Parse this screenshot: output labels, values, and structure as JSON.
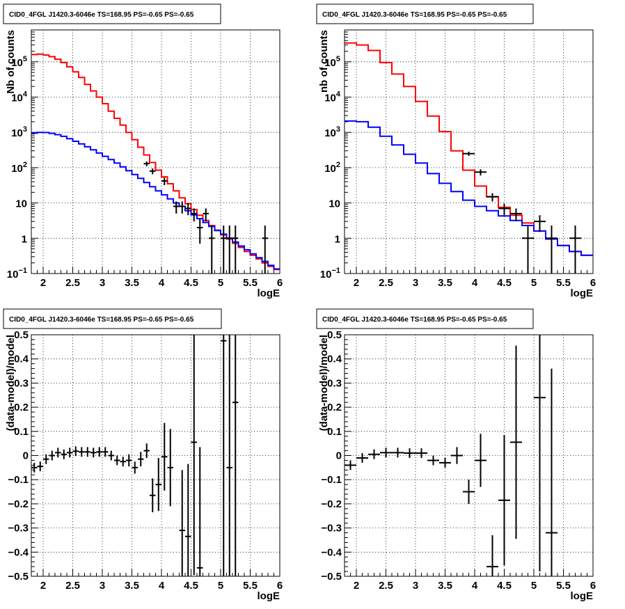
{
  "chart_data": [
    {
      "type": "histogram",
      "title": "CID0_4FGL J1420.3-6046e TS=168.95 PS=-0.65 PS=-0.65",
      "xlabel": "logE",
      "ylabel": "Nb of counts",
      "xlim": [
        1.8,
        6.0
      ],
      "ylim": [
        0.1,
        800000
      ],
      "yscale": "log",
      "grid": true,
      "xticks": [
        {
          "v": 2,
          "label": "2"
        },
        {
          "v": 2.5,
          "label": "2.5"
        },
        {
          "v": 3,
          "label": "3"
        },
        {
          "v": 3.5,
          "label": "3.5"
        },
        {
          "v": 4,
          "label": "4"
        },
        {
          "v": 4.5,
          "label": "4.5"
        },
        {
          "v": 5,
          "label": "5"
        },
        {
          "v": 5.5,
          "label": "5.5"
        },
        {
          "v": 6,
          "label": "6"
        }
      ],
      "yticks": [
        {
          "v": 0.1,
          "base": "10",
          "exp": "−1"
        },
        {
          "v": 1,
          "base": "1",
          "exp": ""
        },
        {
          "v": 10,
          "base": "10",
          "exp": ""
        },
        {
          "v": 100,
          "base": "10",
          "exp": "2"
        },
        {
          "v": 1000,
          "base": "10",
          "exp": "3"
        },
        {
          "v": 10000,
          "base": "10",
          "exp": "4"
        },
        {
          "v": 100000,
          "base": "10",
          "exp": "5"
        }
      ],
      "bin_edges": [
        1.8,
        1.9,
        2.0,
        2.1,
        2.2,
        2.3,
        2.4,
        2.5,
        2.6,
        2.7,
        2.8,
        2.9,
        3.0,
        3.1,
        3.2,
        3.3,
        3.4,
        3.5,
        3.6,
        3.7,
        3.8,
        3.9,
        4.0,
        4.1,
        4.2,
        4.3,
        4.4,
        4.5,
        4.6,
        4.7,
        4.8,
        4.9,
        5.0,
        5.1,
        5.2,
        5.3,
        5.4,
        5.5,
        5.6,
        5.7,
        5.8,
        5.9,
        6.0
      ],
      "series": [
        {
          "color": "#ff0000",
          "values": [
            160000,
            165000,
            155000,
            140000,
            118000,
            95000,
            72000,
            52000,
            36000,
            23000,
            15000,
            10000,
            6500,
            4000,
            2500,
            1600,
            1000,
            620,
            380,
            230,
            140,
            85,
            55,
            35,
            22,
            14,
            9.5,
            6.5,
            4.5,
            3.2,
            2.3,
            1.7,
            1.25,
            0.95,
            0.72,
            0.55,
            0.42,
            0.33,
            0.26,
            0.2,
            0.16,
            0.13
          ]
        },
        {
          "color": "#0000ff",
          "values": [
            950,
            1000,
            990,
            940,
            860,
            770,
            660,
            560,
            470,
            390,
            320,
            260,
            210,
            170,
            135,
            105,
            82,
            64,
            50,
            38,
            29,
            22,
            17,
            13,
            10,
            8,
            6,
            4.6,
            3.6,
            2.8,
            2.15,
            1.65,
            1.3,
            1.0,
            0.78,
            0.6,
            0.47,
            0.36,
            0.28,
            0.22,
            0.17,
            0.135
          ]
        }
      ],
      "points": [
        {
          "x": 3.75,
          "y": 130,
          "ylo": 110,
          "yhi": 150
        },
        {
          "x": 3.85,
          "y": 80,
          "ylo": 65,
          "yhi": 95
        },
        {
          "x": 4.05,
          "y": 42,
          "ylo": 32,
          "yhi": 52
        },
        {
          "x": 4.25,
          "y": 8,
          "ylo": 5,
          "yhi": 11
        },
        {
          "x": 4.35,
          "y": 8,
          "ylo": 5,
          "yhi": 11
        },
        {
          "x": 4.45,
          "y": 7,
          "ylo": 4.5,
          "yhi": 10
        },
        {
          "x": 4.55,
          "y": 5,
          "ylo": 3,
          "yhi": 7
        },
        {
          "x": 4.65,
          "y": 2,
          "ylo": 0.7,
          "yhi": 3.5
        },
        {
          "x": 4.75,
          "y": 5,
          "ylo": 3,
          "yhi": 7
        },
        {
          "x": 4.85,
          "y": 1,
          "ylo": 0.1,
          "yhi": 2.3
        },
        {
          "x": 5.05,
          "y": 1,
          "ylo": 0.1,
          "yhi": 2.3
        },
        {
          "x": 5.15,
          "y": 1,
          "ylo": 0.1,
          "yhi": 2.3
        },
        {
          "x": 5.25,
          "y": 1,
          "ylo": 0.1,
          "yhi": 2.3
        },
        {
          "x": 5.75,
          "y": 1,
          "ylo": 0.1,
          "yhi": 2.3
        }
      ]
    },
    {
      "type": "histogram",
      "title": "CID0_4FGL J1420.3-6046e TS=168.95 PS=-0.65 PS=-0.65",
      "xlabel": "logE",
      "ylabel": "nb of counts",
      "xlim": [
        1.8,
        6.0
      ],
      "ylim": [
        0.1,
        800000
      ],
      "yscale": "log",
      "grid": true,
      "xticks": [
        {
          "v": 2,
          "label": "2"
        },
        {
          "v": 2.5,
          "label": "2.5"
        },
        {
          "v": 3,
          "label": "3"
        },
        {
          "v": 3.5,
          "label": "3.5"
        },
        {
          "v": 4,
          "label": "4"
        },
        {
          "v": 4.5,
          "label": "4.5"
        },
        {
          "v": 5,
          "label": "5"
        },
        {
          "v": 5.5,
          "label": "5.5"
        },
        {
          "v": 6,
          "label": "6"
        }
      ],
      "yticks": [
        {
          "v": 0.1,
          "base": "10",
          "exp": "−1"
        },
        {
          "v": 1,
          "base": "1",
          "exp": ""
        },
        {
          "v": 10,
          "base": "10",
          "exp": ""
        },
        {
          "v": 100,
          "base": "10",
          "exp": "2"
        },
        {
          "v": 1000,
          "base": "10",
          "exp": "3"
        },
        {
          "v": 10000,
          "base": "10",
          "exp": "4"
        },
        {
          "v": 100000,
          "base": "10",
          "exp": "5"
        }
      ],
      "bin_edges": [
        1.8,
        2.0,
        2.2,
        2.4,
        2.6,
        2.8,
        3.0,
        3.2,
        3.4,
        3.6,
        3.8,
        4.0,
        4.2,
        4.4,
        4.6,
        4.8,
        5.0,
        5.2,
        5.4,
        5.6,
        5.8,
        6.0
      ],
      "series": [
        {
          "color": "#ff0000",
          "values": [
            340000,
            300000,
            210000,
            95000,
            45000,
            20000,
            7500,
            2900,
            1050,
            300,
            85,
            30,
            15,
            7.5,
            4.5,
            2.7,
            1.6,
            0.95,
            0.62,
            0.42,
            0.33
          ]
        },
        {
          "color": "#0000ff",
          "values": [
            2100,
            2000,
            1400,
            780,
            440,
            240,
            135,
            68,
            36,
            21,
            12,
            8,
            6,
            4.3,
            3.2,
            2.3,
            1.6,
            0.95,
            0.62,
            0.42,
            0.33
          ]
        }
      ],
      "points": [
        {
          "x": 3.9,
          "y": 250,
          "ylo": 215,
          "yhi": 285
        },
        {
          "x": 4.1,
          "y": 75,
          "ylo": 60,
          "yhi": 90
        },
        {
          "x": 4.3,
          "y": 15,
          "ylo": 11,
          "yhi": 19
        },
        {
          "x": 4.5,
          "y": 7,
          "ylo": 4.5,
          "yhi": 9.5
        },
        {
          "x": 4.7,
          "y": 5,
          "ylo": 3,
          "yhi": 7
        },
        {
          "x": 4.9,
          "y": 1,
          "ylo": 0.1,
          "yhi": 2.3
        },
        {
          "x": 5.1,
          "y": 3,
          "ylo": 1.5,
          "yhi": 4.5
        },
        {
          "x": 5.3,
          "y": 1,
          "ylo": 0.1,
          "yhi": 2.3
        },
        {
          "x": 5.7,
          "y": 1,
          "ylo": 0.1,
          "yhi": 2.3
        }
      ]
    },
    {
      "type": "scatter",
      "title": "CID0_4FGL J1420.3-6046e TS=168.95 PS=-0.65 PS=-0.65",
      "xlabel": "logE",
      "ylabel": "(data-model)/model",
      "xlim": [
        1.8,
        6.0
      ],
      "ylim": [
        -0.5,
        0.5
      ],
      "yscale": "linear",
      "grid": true,
      "xticks": [
        {
          "v": 2,
          "label": "2"
        },
        {
          "v": 2.5,
          "label": "2.5"
        },
        {
          "v": 3,
          "label": "3"
        },
        {
          "v": 3.5,
          "label": "3.5"
        },
        {
          "v": 4,
          "label": "4"
        },
        {
          "v": 4.5,
          "label": "4.5"
        },
        {
          "v": 5,
          "label": "5"
        },
        {
          "v": 5.5,
          "label": "5.5"
        },
        {
          "v": 6,
          "label": "6"
        }
      ],
      "yticks": [
        {
          "v": -0.5,
          "label": "−0.5"
        },
        {
          "v": -0.4,
          "label": "−0.4"
        },
        {
          "v": -0.3,
          "label": "−0.3"
        },
        {
          "v": -0.2,
          "label": "−0.2"
        },
        {
          "v": -0.1,
          "label": "−0.1"
        },
        {
          "v": 0,
          "label": "0"
        },
        {
          "v": 0.1,
          "label": "0.1"
        },
        {
          "v": 0.2,
          "label": "0.2"
        },
        {
          "v": 0.3,
          "label": "0.3"
        },
        {
          "v": 0.4,
          "label": "0.4"
        },
        {
          "v": 0.5,
          "label": "0.5"
        }
      ],
      "xerr": 0.05,
      "points": [
        {
          "x": 1.85,
          "y": -0.05,
          "e": 0.02
        },
        {
          "x": 1.95,
          "y": -0.045,
          "e": 0.02
        },
        {
          "x": 2.05,
          "y": -0.015,
          "e": 0.02
        },
        {
          "x": 2.15,
          "y": 0.0,
          "e": 0.02
        },
        {
          "x": 2.25,
          "y": 0.012,
          "e": 0.02
        },
        {
          "x": 2.35,
          "y": 0.005,
          "e": 0.02
        },
        {
          "x": 2.45,
          "y": 0.012,
          "e": 0.02
        },
        {
          "x": 2.55,
          "y": 0.018,
          "e": 0.02
        },
        {
          "x": 2.65,
          "y": 0.015,
          "e": 0.02
        },
        {
          "x": 2.75,
          "y": 0.015,
          "e": 0.02
        },
        {
          "x": 2.85,
          "y": 0.012,
          "e": 0.02
        },
        {
          "x": 2.95,
          "y": 0.015,
          "e": 0.02
        },
        {
          "x": 3.05,
          "y": 0.015,
          "e": 0.02
        },
        {
          "x": 3.15,
          "y": 0.0,
          "e": 0.02
        },
        {
          "x": 3.25,
          "y": -0.02,
          "e": 0.02
        },
        {
          "x": 3.35,
          "y": -0.025,
          "e": 0.02
        },
        {
          "x": 3.45,
          "y": -0.02,
          "e": 0.025
        },
        {
          "x": 3.55,
          "y": -0.05,
          "e": 0.025
        },
        {
          "x": 3.65,
          "y": -0.015,
          "e": 0.03
        },
        {
          "x": 3.75,
          "y": 0.02,
          "e": 0.03
        },
        {
          "x": 3.85,
          "y": -0.165,
          "e": 0.07
        },
        {
          "x": 3.95,
          "y": -0.12,
          "e": 0.11
        },
        {
          "x": 4.05,
          "y": -0.005,
          "e": 0.14
        },
        {
          "x": 4.15,
          "y": -0.05,
          "e": 0.16
        },
        {
          "x": 4.35,
          "y": -0.31,
          "e": 0.25
        },
        {
          "x": 4.45,
          "y": -0.335,
          "e": 0.3
        },
        {
          "x": 4.55,
          "y": 0.055,
          "e": 0.55
        },
        {
          "x": 4.65,
          "y": -0.465,
          "e": 0.5
        },
        {
          "x": 5.05,
          "y": 0.475,
          "e": 1.0
        },
        {
          "x": 5.15,
          "y": -0.05,
          "e": 1.0
        },
        {
          "x": 5.25,
          "y": 0.22,
          "e": 1.0
        }
      ]
    },
    {
      "type": "scatter",
      "title": "CID0_4FGL J1420.3-6046e TS=168.95 PS=-0.65 PS=-0.65",
      "xlabel": "logE",
      "ylabel": "(data-model)/model",
      "xlim": [
        1.8,
        6.0
      ],
      "ylim": [
        -0.5,
        0.5
      ],
      "yscale": "linear",
      "grid": true,
      "xticks": [
        {
          "v": 2,
          "label": "2"
        },
        {
          "v": 2.5,
          "label": "2.5"
        },
        {
          "v": 3,
          "label": "3"
        },
        {
          "v": 3.5,
          "label": "3.5"
        },
        {
          "v": 4,
          "label": "4"
        },
        {
          "v": 4.5,
          "label": "4.5"
        },
        {
          "v": 5,
          "label": "5"
        },
        {
          "v": 5.5,
          "label": "5.5"
        },
        {
          "v": 6,
          "label": "6"
        }
      ],
      "yticks": [
        {
          "v": -0.5,
          "label": "−0.5"
        },
        {
          "v": -0.4,
          "label": "−0.4"
        },
        {
          "v": -0.3,
          "label": "−0.3"
        },
        {
          "v": -0.2,
          "label": "−0.2"
        },
        {
          "v": -0.1,
          "label": "−0.1"
        },
        {
          "v": 0,
          "label": "0"
        },
        {
          "v": 0.1,
          "label": "0.1"
        },
        {
          "v": 0.2,
          "label": "0.2"
        },
        {
          "v": 0.3,
          "label": "0.3"
        },
        {
          "v": 0.4,
          "label": "0.4"
        },
        {
          "v": 0.5,
          "label": "0.5"
        }
      ],
      "xerr": 0.1,
      "points": [
        {
          "x": 1.9,
          "y": -0.04,
          "e": 0.02
        },
        {
          "x": 2.1,
          "y": -0.01,
          "e": 0.02
        },
        {
          "x": 2.3,
          "y": 0.005,
          "e": 0.02
        },
        {
          "x": 2.5,
          "y": 0.012,
          "e": 0.02
        },
        {
          "x": 2.7,
          "y": 0.012,
          "e": 0.02
        },
        {
          "x": 2.9,
          "y": 0.01,
          "e": 0.02
        },
        {
          "x": 3.1,
          "y": 0.01,
          "e": 0.02
        },
        {
          "x": 3.3,
          "y": -0.02,
          "e": 0.02
        },
        {
          "x": 3.5,
          "y": -0.03,
          "e": 0.02
        },
        {
          "x": 3.7,
          "y": 0.0,
          "e": 0.035
        },
        {
          "x": 3.9,
          "y": -0.15,
          "e": 0.05
        },
        {
          "x": 4.1,
          "y": -0.02,
          "e": 0.11
        },
        {
          "x": 4.3,
          "y": -0.46,
          "e": 0.13
        },
        {
          "x": 4.5,
          "y": -0.185,
          "e": 0.27
        },
        {
          "x": 4.7,
          "y": 0.055,
          "e": 0.4
        },
        {
          "x": 5.1,
          "y": 0.24,
          "e": 0.72
        },
        {
          "x": 5.3,
          "y": -0.32,
          "e": 0.68
        }
      ]
    }
  ]
}
